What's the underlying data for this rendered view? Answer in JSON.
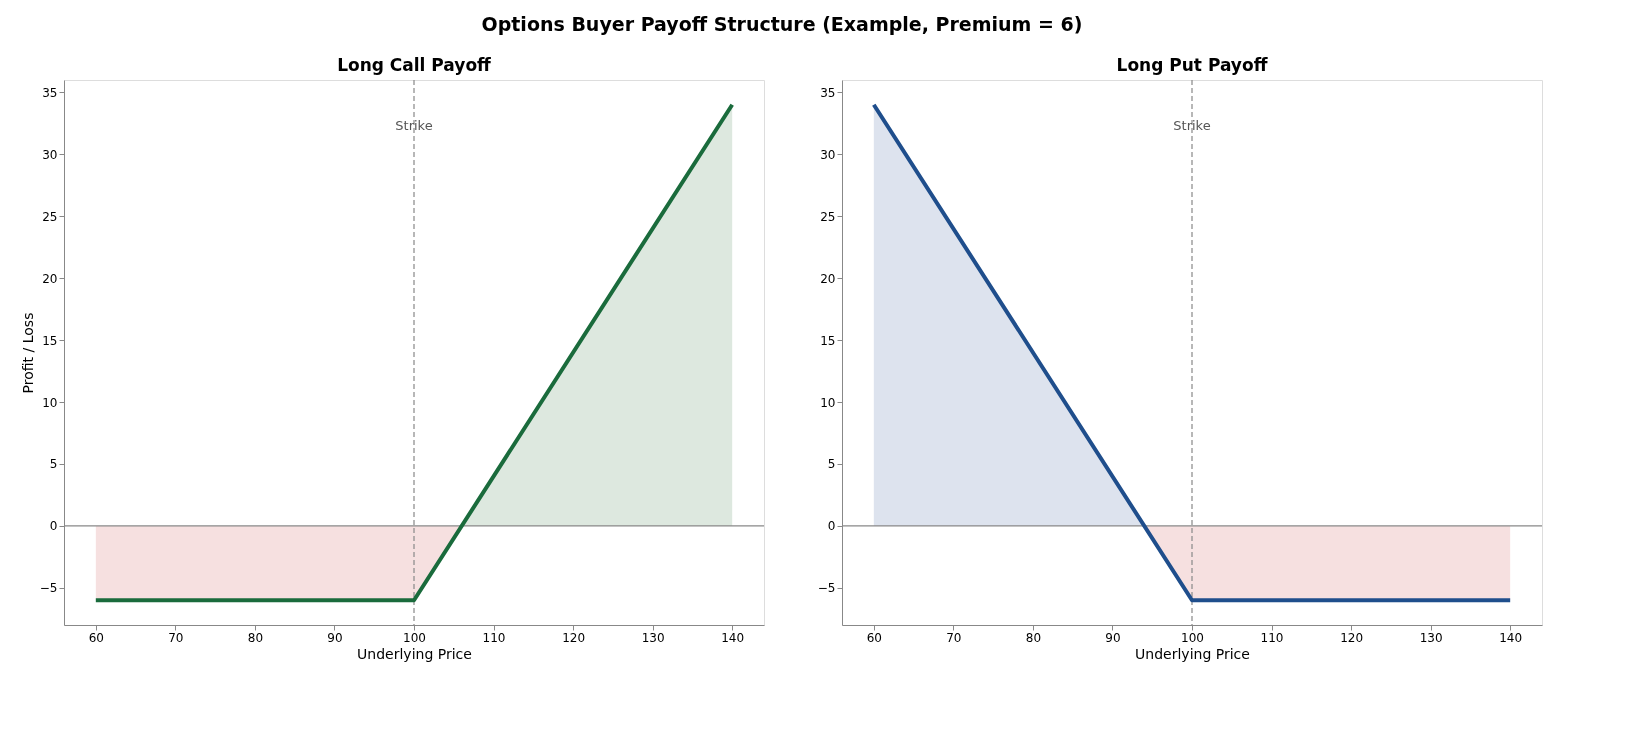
{
  "chart_data": [
    {
      "type": "line",
      "title": "Long Call Payoff",
      "xlabel": "Underlying Price",
      "ylabel": "Profit / Loss",
      "annotations": [
        "Options Buyer Payoff Structure (Example, Premium = 6)"
      ],
      "xlim": [
        56,
        144
      ],
      "ylim": [
        -8,
        36
      ],
      "xticks": [
        60,
        70,
        80,
        90,
        100,
        110,
        120,
        130,
        140
      ],
      "yticks": [
        -5,
        0,
        5,
        10,
        15,
        20,
        25,
        30,
        35
      ],
      "grid": false,
      "line_style": "solid",
      "series": [
        {
          "type": "area",
          "color": "#f6e0e0",
          "x": [
            60,
            100,
            106
          ],
          "values": [
            -6,
            -6,
            0
          ]
        },
        {
          "type": "area",
          "color": "#dde8df",
          "x": [
            106,
            140
          ],
          "values": [
            0,
            34
          ]
        },
        {
          "color": "#1a6b3c",
          "x": [
            60,
            100,
            140
          ],
          "values": [
            -6,
            -6,
            34
          ]
        }
      ],
      "ref_lines": [
        {
          "axis": "y",
          "value": 0,
          "color": "#888888",
          "line_style": "solid"
        },
        {
          "axis": "x",
          "value": 100,
          "label": "Strike",
          "color": "#888888",
          "line_style": "dashed"
        }
      ]
    },
    {
      "type": "line",
      "title": "Long Put Payoff",
      "xlabel": "Underlying Price",
      "xlim": [
        56,
        144
      ],
      "ylim": [
        -8,
        36
      ],
      "xticks": [
        60,
        70,
        80,
        90,
        100,
        110,
        120,
        130,
        140
      ],
      "yticks": [
        -5,
        0,
        5,
        10,
        15,
        20,
        25,
        30,
        35
      ],
      "grid": false,
      "line_style": "solid",
      "series": [
        {
          "type": "area",
          "color": "#dde3ee",
          "x": [
            60,
            94
          ],
          "values": [
            34,
            0
          ]
        },
        {
          "type": "area",
          "color": "#f6e0e0",
          "x": [
            94,
            100,
            140
          ],
          "values": [
            0,
            -6,
            -6
          ]
        },
        {
          "color": "#1f4e8c",
          "x": [
            60,
            100,
            140
          ],
          "values": [
            34,
            -6,
            -6
          ]
        }
      ],
      "ref_lines": [
        {
          "axis": "y",
          "value": 0,
          "color": "#888888",
          "line_style": "solid"
        },
        {
          "axis": "x",
          "value": 100,
          "label": "Strike",
          "color": "#888888",
          "line_style": "dashed"
        }
      ]
    }
  ]
}
